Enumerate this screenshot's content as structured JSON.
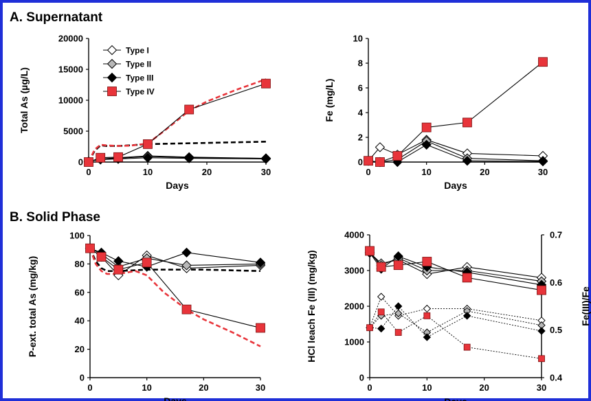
{
  "sections": {
    "a": "A. Supernatant",
    "b": "B. Solid Phase"
  },
  "colors": {
    "frame": "#1f2fd8",
    "type4": "#e8343a",
    "dash_black": "#000000",
    "dash_red": "#e8343a"
  },
  "chart_data": [
    {
      "id": "total-as",
      "type": "line",
      "xlabel": "Days",
      "ylabel": "Total As (µg/L)",
      "xlim": [
        0,
        30
      ],
      "ylim": [
        0,
        20000
      ],
      "xticks": [
        "0",
        "10",
        "20",
        "30"
      ],
      "yticks": [
        "0",
        "5000",
        "10000",
        "15000",
        "20000"
      ],
      "legend": "top-left",
      "series": [
        {
          "name": "Type I",
          "marker": "diamond-open",
          "x": [
            0,
            2,
            5,
            10,
            17,
            30
          ],
          "y": [
            100,
            500,
            700,
            1000,
            800,
            600
          ]
        },
        {
          "name": "Type II",
          "marker": "diamond-gray",
          "x": [
            0,
            2,
            5,
            10,
            17,
            30
          ],
          "y": [
            100,
            500,
            600,
            900,
            700,
            600
          ]
        },
        {
          "name": "Type III",
          "marker": "diamond-filled",
          "x": [
            0,
            2,
            5,
            10,
            17,
            30
          ],
          "y": [
            100,
            400,
            500,
            700,
            600,
            500
          ]
        },
        {
          "name": "Type IV",
          "marker": "square-red",
          "x": [
            0,
            2,
            5,
            10,
            17,
            30
          ],
          "y": [
            0,
            700,
            800,
            2900,
            8500,
            12700
          ]
        }
      ],
      "dashed": [
        {
          "color": "black",
          "x": [
            0,
            1,
            2,
            3,
            5,
            7,
            10,
            15,
            20,
            25,
            30
          ],
          "y": [
            0,
            1800,
            2700,
            2600,
            2600,
            2700,
            2900,
            3000,
            3100,
            3200,
            3300
          ]
        },
        {
          "color": "red",
          "x": [
            0,
            1,
            2,
            3,
            5,
            7,
            10,
            13,
            17,
            20,
            25,
            30
          ],
          "y": [
            0,
            2000,
            2800,
            2700,
            2600,
            2650,
            3000,
            5200,
            8300,
            9800,
            11700,
            13400
          ]
        }
      ]
    },
    {
      "id": "fe",
      "type": "line",
      "xlabel": "Days",
      "ylabel": "Fe (mg/L)",
      "xlim": [
        0,
        30
      ],
      "ylim": [
        0,
        10
      ],
      "xticks": [
        "0",
        "10",
        "20",
        "30"
      ],
      "yticks": [
        "0",
        "2",
        "4",
        "6",
        "8",
        "10"
      ],
      "series": [
        {
          "name": "Type I",
          "marker": "diamond-open",
          "x": [
            0,
            2,
            5,
            10,
            17,
            30
          ],
          "y": [
            0.1,
            1.2,
            0.6,
            1.8,
            0.7,
            0.5
          ]
        },
        {
          "name": "Type II",
          "marker": "diamond-gray",
          "x": [
            0,
            2,
            5,
            10,
            17,
            30
          ],
          "y": [
            0.1,
            0.0,
            0.2,
            1.7,
            0.3,
            0.1
          ]
        },
        {
          "name": "Type III",
          "marker": "diamond-filled",
          "x": [
            0,
            2,
            5,
            10,
            17,
            30
          ],
          "y": [
            0.1,
            0.0,
            0.0,
            1.4,
            0.1,
            0.05
          ]
        },
        {
          "name": "Type IV",
          "marker": "square-red",
          "x": [
            0,
            2,
            5,
            10,
            17,
            30
          ],
          "y": [
            0.1,
            0.0,
            0.5,
            2.8,
            3.2,
            8.1
          ]
        }
      ]
    },
    {
      "id": "p-ext-as",
      "type": "line",
      "xlabel": "Days",
      "ylabel": "P-ext. total As (mg/kg)",
      "xlim": [
        0,
        30
      ],
      "ylim": [
        0,
        100
      ],
      "xticks": [
        "0",
        "10",
        "20",
        "30"
      ],
      "yticks": [
        "0",
        "20",
        "40",
        "60",
        "80",
        "100"
      ],
      "series": [
        {
          "name": "Type I",
          "marker": "diamond-open",
          "x": [
            0,
            2,
            5,
            10,
            17,
            30
          ],
          "y": [
            91,
            85,
            72,
            86,
            77,
            79
          ]
        },
        {
          "name": "Type II",
          "marker": "diamond-gray",
          "x": [
            0,
            2,
            5,
            10,
            17,
            30
          ],
          "y": [
            91,
            87,
            78,
            84,
            79,
            80
          ]
        },
        {
          "name": "Type III",
          "marker": "diamond-filled",
          "x": [
            0,
            2,
            5,
            10,
            17,
            30
          ],
          "y": [
            91,
            88,
            82,
            78,
            88,
            81
          ]
        },
        {
          "name": "Type IV",
          "marker": "square-red",
          "x": [
            0,
            2,
            5,
            10,
            17,
            30
          ],
          "y": [
            91,
            85,
            76,
            81,
            48,
            35
          ]
        }
      ],
      "dashed": [
        {
          "color": "black",
          "x": [
            0,
            1,
            2,
            3,
            5,
            10,
            20,
            30
          ],
          "y": [
            91,
            82,
            77,
            75,
            75,
            76,
            76,
            75
          ]
        },
        {
          "color": "red",
          "x": [
            0,
            1,
            2,
            3,
            5,
            8,
            10,
            13,
            17,
            20,
            25,
            30
          ],
          "y": [
            91,
            80,
            75,
            73,
            73,
            75,
            72,
            60,
            48,
            41,
            32,
            22
          ]
        }
      ]
    },
    {
      "id": "hcl-fe",
      "type": "line",
      "xlabel": "Days",
      "ylabel": "HCl leach Fe (III) (mg/kg)",
      "y2label": "Fe(III)/Fe",
      "xlim": [
        0,
        30
      ],
      "ylim": [
        0,
        4000
      ],
      "y2lim": [
        0.4,
        0.7
      ],
      "xticks": [
        "0",
        "10",
        "20",
        "30"
      ],
      "yticks": [
        "0",
        "1000",
        "2000",
        "3000",
        "4000"
      ],
      "y2ticks": [
        "0.4",
        "0.5",
        "0.6",
        "0.7"
      ],
      "series": [
        {
          "name": "Type I",
          "marker": "diamond-open",
          "x": [
            0,
            2,
            5,
            10,
            17,
            30
          ],
          "y": [
            3500,
            3200,
            3300,
            2900,
            3100,
            2800
          ]
        },
        {
          "name": "Type II",
          "marker": "diamond-gray",
          "x": [
            0,
            2,
            5,
            10,
            17,
            30
          ],
          "y": [
            3500,
            3150,
            3350,
            3000,
            3000,
            2700
          ]
        },
        {
          "name": "Type III",
          "marker": "diamond-filled",
          "x": [
            0,
            2,
            5,
            10,
            17,
            30
          ],
          "y": [
            3500,
            3050,
            3400,
            3100,
            2950,
            2600
          ]
        },
        {
          "name": "Type IV",
          "marker": "square-red",
          "x": [
            0,
            2,
            5,
            10,
            17,
            30
          ],
          "y": [
            3550,
            3100,
            3150,
            3250,
            2800,
            2450
          ]
        }
      ],
      "ratio_series": [
        {
          "name": "Type I",
          "marker": "diamond-open",
          "x": [
            0,
            2,
            5,
            10,
            17,
            30
          ],
          "y": [
            0.505,
            0.57,
            0.53,
            0.545,
            0.545,
            0.52
          ]
        },
        {
          "name": "Type II",
          "marker": "diamond-gray",
          "x": [
            0,
            2,
            5,
            10,
            17,
            30
          ],
          "y": [
            0.505,
            0.53,
            0.535,
            0.495,
            0.54,
            0.51
          ]
        },
        {
          "name": "Type III",
          "marker": "diamond-filled",
          "x": [
            0,
            2,
            5,
            10,
            17,
            30
          ],
          "y": [
            0.505,
            0.503,
            0.55,
            0.485,
            0.53,
            0.498
          ]
        },
        {
          "name": "Type IV",
          "marker": "square-red",
          "x": [
            0,
            2,
            5,
            10,
            17,
            30
          ],
          "y": [
            0.505,
            0.538,
            0.495,
            0.53,
            0.464,
            0.44
          ]
        }
      ]
    }
  ]
}
